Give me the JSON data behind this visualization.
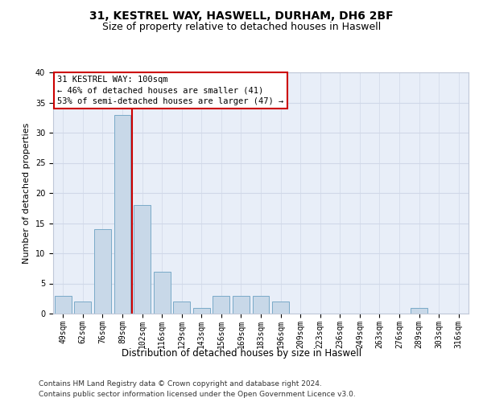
{
  "title1": "31, KESTREL WAY, HASWELL, DURHAM, DH6 2BF",
  "title2": "Size of property relative to detached houses in Haswell",
  "xlabel": "Distribution of detached houses by size in Haswell",
  "ylabel": "Number of detached properties",
  "categories": [
    "49sqm",
    "62sqm",
    "76sqm",
    "89sqm",
    "102sqm",
    "116sqm",
    "129sqm",
    "143sqm",
    "156sqm",
    "169sqm",
    "183sqm",
    "196sqm",
    "209sqm",
    "223sqm",
    "236sqm",
    "249sqm",
    "263sqm",
    "276sqm",
    "289sqm",
    "303sqm",
    "316sqm"
  ],
  "values": [
    3,
    2,
    14,
    33,
    18,
    7,
    2,
    1,
    3,
    3,
    3,
    2,
    0,
    0,
    0,
    0,
    0,
    0,
    1,
    0,
    0
  ],
  "bar_color": "#c8d8e8",
  "bar_edge_color": "#7aaac8",
  "vline_x_index": 3,
  "vline_color": "#cc0000",
  "annotation_text": "31 KESTREL WAY: 100sqm\n← 46% of detached houses are smaller (41)\n53% of semi-detached houses are larger (47) →",
  "annotation_box_color": "#ffffff",
  "annotation_box_edge": "#cc0000",
  "ylim": [
    0,
    40
  ],
  "yticks": [
    0,
    5,
    10,
    15,
    20,
    25,
    30,
    35,
    40
  ],
  "grid_color": "#d0d8e8",
  "bg_color": "#e8eef8",
  "footer1": "Contains HM Land Registry data © Crown copyright and database right 2024.",
  "footer2": "Contains public sector information licensed under the Open Government Licence v3.0.",
  "title1_fontsize": 10,
  "title2_fontsize": 9,
  "xlabel_fontsize": 8.5,
  "ylabel_fontsize": 8,
  "tick_fontsize": 7,
  "annotation_fontsize": 7.5,
  "footer_fontsize": 6.5
}
